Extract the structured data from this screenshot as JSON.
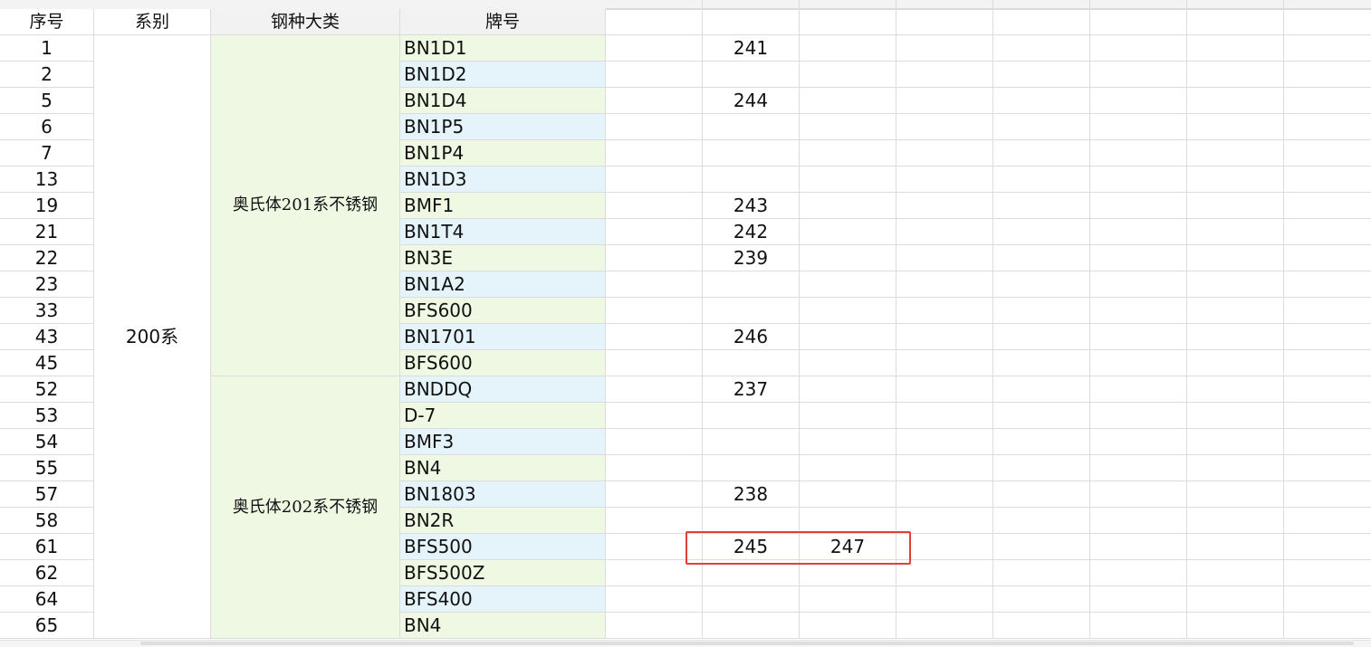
{
  "headers": {
    "seq": "序号",
    "series": "系别",
    "category": "钢种大类",
    "grade": "牌号"
  },
  "series_value": "200系",
  "groups": [
    {
      "label": "奥氏体201系不锈钢",
      "start": 0,
      "count": 13
    },
    {
      "label": "奥氏体202系不锈钢",
      "start": 13,
      "count": 10
    }
  ],
  "rows": [
    {
      "seq": "1",
      "grade": "BN1D1",
      "e": "241",
      "f": ""
    },
    {
      "seq": "2",
      "grade": "BN1D2",
      "e": "",
      "f": ""
    },
    {
      "seq": "5",
      "grade": "BN1D4",
      "e": "244",
      "f": ""
    },
    {
      "seq": "6",
      "grade": "BN1P5",
      "e": "",
      "f": ""
    },
    {
      "seq": "7",
      "grade": "BN1P4",
      "e": "",
      "f": ""
    },
    {
      "seq": "13",
      "grade": "BN1D3",
      "e": "",
      "f": ""
    },
    {
      "seq": "19",
      "grade": "BMF1",
      "e": "243",
      "f": ""
    },
    {
      "seq": "21",
      "grade": "BN1T4",
      "e": "242",
      "f": ""
    },
    {
      "seq": "22",
      "grade": "BN3E",
      "e": "239",
      "f": ""
    },
    {
      "seq": "23",
      "grade": "BN1A2",
      "e": "",
      "f": ""
    },
    {
      "seq": "33",
      "grade": "BFS600",
      "e": "",
      "f": ""
    },
    {
      "seq": "43",
      "grade": "BN1701",
      "e": "246",
      "f": ""
    },
    {
      "seq": "45",
      "grade": "BFS600",
      "e": "",
      "f": ""
    },
    {
      "seq": "52",
      "grade": "BNDDQ",
      "e": "237",
      "f": ""
    },
    {
      "seq": "53",
      "grade": "D-7",
      "e": "",
      "f": ""
    },
    {
      "seq": "54",
      "grade": "BMF3",
      "e": "",
      "f": ""
    },
    {
      "seq": "55",
      "grade": "BN4",
      "e": "",
      "f": ""
    },
    {
      "seq": "57",
      "grade": "BN1803",
      "e": "238",
      "f": ""
    },
    {
      "seq": "58",
      "grade": "BN2R",
      "e": "",
      "f": ""
    },
    {
      "seq": "61",
      "grade": "BFS500",
      "e": "245",
      "f": "247"
    },
    {
      "seq": "62",
      "grade": "BFS500Z",
      "e": "",
      "f": ""
    },
    {
      "seq": "64",
      "grade": "BFS400",
      "e": "",
      "f": ""
    },
    {
      "seq": "65",
      "grade": "BN4",
      "e": "",
      "f": ""
    }
  ],
  "highlight_row_seq": "61",
  "colors": {
    "green_fill": "#eff8e2",
    "blue_fill": "#e5f3fa",
    "highlight_border": "#e0403a",
    "active_column_marker": "#1e8a3c"
  }
}
